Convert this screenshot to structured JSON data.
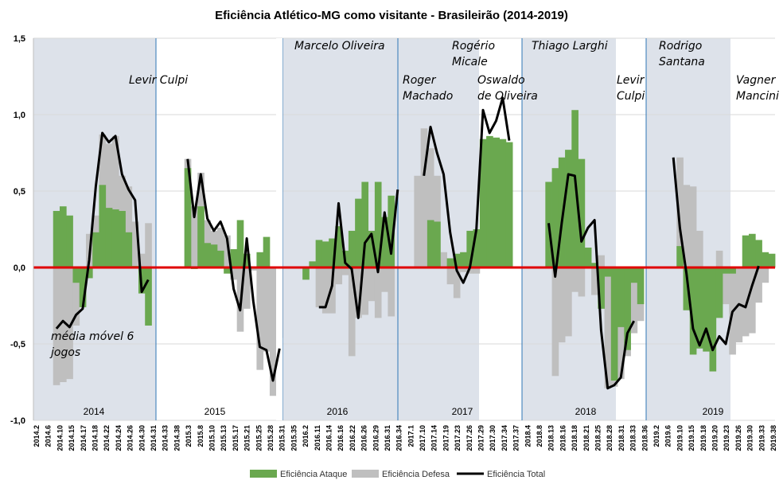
{
  "chart_data": {
    "type": "bar",
    "title": "Eficiência Atlético-MG como visitante - Brasileirão (2014-2019)",
    "ylim": [
      -1.0,
      1.5
    ],
    "yticks": [
      "1,5",
      "1,0",
      "0,5",
      "0,0",
      "-0,5",
      "-1,0"
    ],
    "ytick_values": [
      1.5,
      1.0,
      0.5,
      0.0,
      -0.5,
      -1.0
    ],
    "reference_line": 0.0,
    "x_labels": [
      "2014.2",
      "2014.6",
      "2014.10",
      "2014.15",
      "2014.17",
      "2014.18",
      "2014.22",
      "2014.24",
      "2014.26",
      "2014.30",
      "2014.31",
      "2014.33",
      "2014.38",
      "2015.3",
      "2015.8",
      "2015.10",
      "2015.13",
      "2015.17",
      "2015.21",
      "2015.25",
      "2015.28",
      "2015.31",
      "2015.35",
      "2016.2",
      "2016.11",
      "2016.14",
      "2016.16",
      "2016.22",
      "2016.26",
      "2016.29",
      "2016.31",
      "2016.34",
      "2017.1",
      "2017.10",
      "2017.14",
      "2017.19",
      "2017.23",
      "2017.26",
      "2017.29",
      "2017.30",
      "2017.34",
      "2017.37",
      "2018.4",
      "2018.8",
      "2018.13",
      "2018.16",
      "2018.18",
      "2018.21",
      "2018.25",
      "2018.28",
      "2018.31",
      "2018.33",
      "2018.36",
      "2019.2",
      "2019.6",
      "2019.10",
      "2019.15",
      "2019.18",
      "2019.20",
      "2019.23",
      "2019.26",
      "2019.30",
      "2019.33",
      "2019.38"
    ],
    "attack": [
      null,
      null,
      null,
      0.37,
      0.4,
      0.34,
      -0.1,
      -0.26,
      -0.07,
      0.23,
      0.54,
      0.39,
      0.38,
      0.37,
      0.23,
      0.01,
      -0.17,
      -0.38,
      null,
      null,
      null,
      null,
      null,
      0.65,
      -0.01,
      0.4,
      0.16,
      0.15,
      0.11,
      -0.04,
      0.12,
      0.31,
      0.09,
      0.0,
      0.1,
      0.2,
      null,
      null,
      null,
      null,
      null,
      -0.08,
      0.04,
      0.18,
      0.17,
      0.19,
      0.27,
      0.11,
      0.24,
      0.45,
      0.56,
      0.24,
      0.56,
      0.33,
      0.47,
      null,
      null,
      null,
      0.0,
      0.0,
      0.31,
      0.3,
      0.0,
      0.06,
      0.09,
      0.1,
      0.24,
      0.25,
      0.84,
      0.86,
      0.85,
      0.84,
      0.82,
      null,
      null,
      null,
      null,
      null,
      0.56,
      0.65,
      0.72,
      0.77,
      1.03,
      0.71,
      0.13,
      0.03,
      -0.27,
      -0.06,
      -0.74,
      -0.39,
      -0.54,
      -0.1,
      -0.24,
      null,
      null,
      null,
      null,
      null,
      0.14,
      -0.28,
      -0.57,
      -0.53,
      -0.55,
      -0.68,
      -0.33,
      -0.04,
      -0.04,
      0.0,
      0.21,
      0.22,
      0.18,
      0.1,
      0.09
    ],
    "defense": [
      null,
      null,
      null,
      -0.77,
      -0.75,
      -0.73,
      -0.38,
      -0.25,
      0.22,
      0.34,
      0.87,
      0.81,
      0.86,
      0.6,
      0.53,
      0.3,
      0.09,
      0.29,
      null,
      null,
      null,
      null,
      null,
      0.71,
      0.4,
      0.62,
      0.31,
      0.24,
      0.26,
      0.21,
      -0.08,
      -0.42,
      -0.27,
      -0.02,
      -0.67,
      -0.55,
      -0.84,
      -0.46,
      null,
      null,
      null,
      null,
      null,
      -0.26,
      -0.3,
      -0.3,
      -0.11,
      -0.05,
      -0.58,
      -0.33,
      -0.31,
      -0.22,
      -0.33,
      -0.16,
      -0.32,
      null,
      null,
      null,
      0.6,
      0.91,
      0.78,
      0.6,
      0.1,
      -0.11,
      -0.2,
      -0.03,
      -0.04,
      -0.04,
      0.0,
      0.0,
      0.0,
      0.0,
      0.0,
      null,
      null,
      null,
      null,
      null,
      0.0,
      -0.71,
      -0.49,
      -0.45,
      -0.16,
      -0.19,
      0.0,
      -0.18,
      0.08,
      -0.79,
      -0.78,
      -0.73,
      -0.58,
      -0.43,
      -0.35,
      null,
      null,
      null,
      null,
      null,
      0.72,
      0.54,
      0.53,
      0.24,
      -0.16,
      -0.28,
      0.11,
      -0.24,
      -0.57,
      -0.49,
      -0.45,
      -0.43,
      -0.23,
      -0.1,
      0.0
    ],
    "total": [
      null,
      null,
      null,
      -0.4,
      -0.35,
      -0.39,
      -0.31,
      -0.27,
      0.05,
      0.53,
      0.88,
      0.82,
      0.86,
      0.61,
      0.51,
      0.44,
      -0.16,
      -0.08,
      null,
      null,
      null,
      null,
      null,
      0.71,
      0.33,
      0.61,
      0.32,
      0.24,
      0.3,
      0.19,
      -0.14,
      -0.28,
      0.19,
      -0.22,
      -0.52,
      -0.54,
      -0.74,
      -0.53,
      null,
      null,
      null,
      null,
      null,
      -0.26,
      -0.26,
      -0.12,
      0.42,
      0.03,
      -0.01,
      -0.33,
      0.16,
      0.22,
      -0.03,
      0.36,
      0.09,
      0.51,
      null,
      null,
      null,
      0.6,
      0.92,
      0.75,
      0.61,
      0.23,
      -0.02,
      -0.1,
      0.0,
      0.25,
      1.03,
      0.88,
      0.96,
      1.11,
      0.83,
      null,
      null,
      null,
      null,
      null,
      0.29,
      -0.06,
      0.29,
      0.61,
      0.6,
      0.17,
      0.26,
      0.31,
      -0.41,
      -0.79,
      -0.77,
      -0.72,
      -0.43,
      -0.35,
      null,
      null,
      null,
      null,
      null,
      0.72,
      0.26,
      -0.04,
      -0.4,
      -0.51,
      -0.4,
      -0.54,
      -0.45,
      -0.5,
      -0.29,
      -0.24,
      -0.26,
      -0.12,
      0.01
    ],
    "periods": [
      {
        "coach": "Levir Culpi",
        "shaded": true
      },
      {
        "coach": "",
        "shaded": false
      },
      {
        "coach": "Marcelo Oliveira",
        "shaded": true
      },
      {
        "coach": "Roger Machado",
        "shaded": true
      },
      {
        "coach": "Rogério Micale",
        "shaded": true
      },
      {
        "coach": "Oswaldo de Oliveira",
        "shaded": false
      },
      {
        "coach": "Thiago Larghi",
        "shaded": true
      },
      {
        "coach": "Levir Culpi",
        "shaded": false
      },
      {
        "coach": "Rodrigo Santana",
        "shaded": true
      },
      {
        "coach": "Vagner Mancini",
        "shaded": false
      }
    ],
    "coach_labels": [
      {
        "lines": [
          "Levir Culpi"
        ]
      },
      {
        "lines": [
          "Marcelo Oliveira"
        ]
      },
      {
        "lines": [
          "Roger",
          "Machado"
        ]
      },
      {
        "lines": [
          "Rogério",
          "Micale"
        ]
      },
      {
        "lines": [
          "Oswaldo",
          "de Oliveira"
        ]
      },
      {
        "lines": [
          "Thiago Larghi"
        ]
      },
      {
        "lines": [
          "Levir",
          "Culpi"
        ]
      },
      {
        "lines": [
          "Rodrigo",
          "Santana"
        ]
      },
      {
        "lines": [
          "Vagner",
          "Mancini"
        ]
      }
    ],
    "years": [
      "2014",
      "2015",
      "2016",
      "2017",
      "2018",
      "2019"
    ],
    "annotation": {
      "lines": [
        "média móvel 6",
        "jogos"
      ]
    },
    "legend": [
      {
        "label": "Eficiência Ataque",
        "color": "#6aa84f"
      },
      {
        "label": "Eficiência Defesa",
        "color": "#bfbfbf"
      },
      {
        "label": "Eficiência Total",
        "color": "#000000"
      }
    ],
    "colors": {
      "shade": "#dde2ea",
      "zero_line": "#e00000",
      "divider": "#2e75b6",
      "grid": "#d9d9d9"
    }
  }
}
